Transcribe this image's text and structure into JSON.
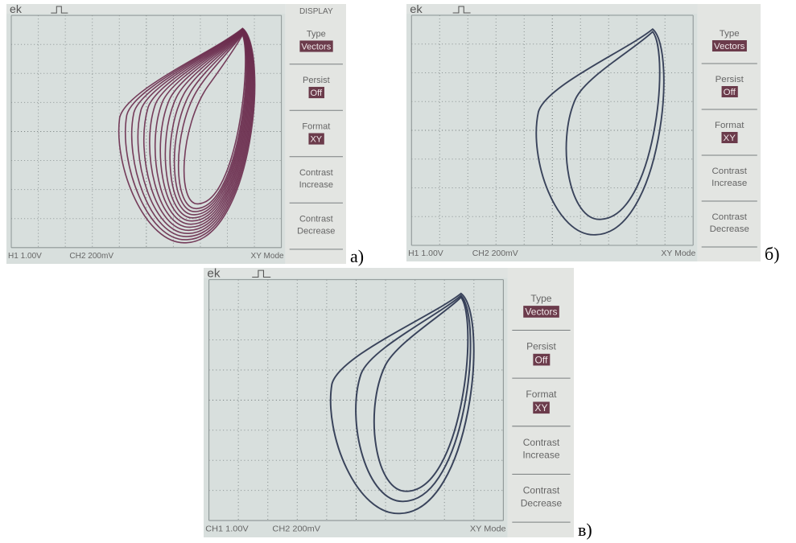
{
  "panels": [
    {
      "caption": "а)",
      "screen": {
        "logo": "ek",
        "ch1": "H1 1.00V",
        "ch2": "CH2 200mV",
        "mode": "XY Mode"
      },
      "menu": {
        "title": "DISPLAY",
        "items": [
          {
            "label": "Type",
            "value": "Vectors"
          },
          {
            "label": "Persist",
            "value": "Off"
          },
          {
            "label": "Format",
            "value": "XY"
          },
          {
            "label": "Contrast",
            "value": "Increase"
          },
          {
            "label": "Contrast",
            "value": "Decrease"
          }
        ]
      }
    },
    {
      "caption": "б)",
      "screen": {
        "logo": "ek",
        "ch1": "H1 1.00V",
        "ch2": "CH2 200mV",
        "mode": "XY Mode"
      },
      "menu": {
        "items": [
          {
            "label": "Type",
            "value": "Vectors"
          },
          {
            "label": "Persist",
            "value": "Off"
          },
          {
            "label": "Format",
            "value": "XY"
          },
          {
            "label": "Contrast",
            "value": "Increase"
          },
          {
            "label": "Contrast",
            "value": "Decrease"
          }
        ]
      }
    },
    {
      "caption": "в)",
      "screen": {
        "logo": "ek",
        "ch1": "CH1 1.00V",
        "ch2": "CH2 200mV",
        "mode": "XY Mode"
      },
      "menu": {
        "items": [
          {
            "label": "Type",
            "value": "Vectors"
          },
          {
            "label": "Persist",
            "value": "Off"
          },
          {
            "label": "Format",
            "value": "XY"
          },
          {
            "label": "Contrast",
            "value": "Increase"
          },
          {
            "label": "Contrast",
            "value": "Decrease"
          }
        ]
      }
    }
  ]
}
